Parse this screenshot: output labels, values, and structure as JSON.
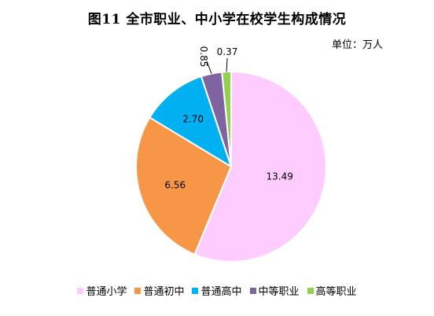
{
  "title": "图11   全市职业、中小学在校学生构成情况",
  "unit_label": "单位：万人",
  "chart_data": {
    "type": "pie",
    "title": "图11   全市职业、中小学在校学生构成情况",
    "unit": "单位：万人",
    "legend_position": "bottom",
    "categories": [
      "普通小学",
      "普通初中",
      "普通高中",
      "中等职业",
      "高等职业"
    ],
    "values": [
      13.49,
      6.56,
      2.7,
      0.85,
      0.37
    ],
    "value_labels": [
      "13.49",
      "6.56",
      "2.70",
      "0.85",
      "0.37"
    ],
    "colors": [
      "#ffccff",
      "#f79646",
      "#00b0f0",
      "#8064a2",
      "#92d050"
    ]
  }
}
